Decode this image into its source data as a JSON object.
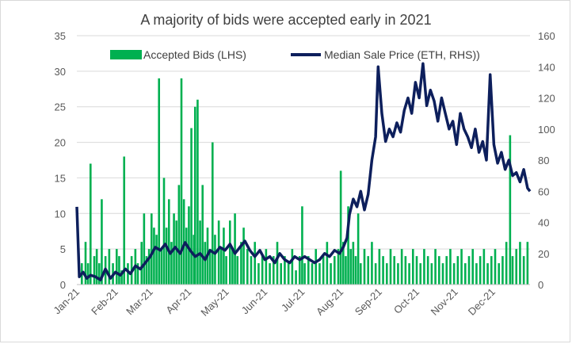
{
  "chart_data": {
    "type": "bar+line",
    "title": "A majority of bids were accepted early in 2021",
    "xlabel": "",
    "ylabel_left": "",
    "ylabel_right": "",
    "x_range": [
      "2021-01-01",
      "2021-12-31"
    ],
    "x_tick_labels": [
      "Jan-21",
      "Feb-21",
      "Mar-21",
      "Apr-21",
      "May-21",
      "Jun-21",
      "Jul-21",
      "Aug-21",
      "Sep-21",
      "Oct-21",
      "Nov-21",
      "Dec-21"
    ],
    "y_left": {
      "range": [
        0,
        35
      ],
      "ticks": [
        0,
        5,
        10,
        15,
        20,
        25,
        30,
        35
      ]
    },
    "y_right": {
      "range": [
        0,
        160
      ],
      "ticks": [
        0,
        20,
        40,
        60,
        80,
        100,
        120,
        140,
        160
      ]
    },
    "grid": "horizontal",
    "legend_position": "top",
    "series": [
      {
        "name": "Accepted Bids (LHS)",
        "type": "bar",
        "axis": "left",
        "color": "#00b050",
        "points": [
          [
            "2021-01-05",
            3
          ],
          [
            "2021-01-08",
            6
          ],
          [
            "2021-01-10",
            3
          ],
          [
            "2021-01-12",
            17
          ],
          [
            "2021-01-15",
            4
          ],
          [
            "2021-01-17",
            5
          ],
          [
            "2021-01-19",
            3
          ],
          [
            "2021-01-21",
            12
          ],
          [
            "2021-01-24",
            4
          ],
          [
            "2021-01-27",
            5
          ],
          [
            "2021-01-30",
            3
          ],
          [
            "2021-02-02",
            5
          ],
          [
            "2021-02-04",
            4
          ],
          [
            "2021-02-06",
            2
          ],
          [
            "2021-02-08",
            18
          ],
          [
            "2021-02-11",
            3
          ],
          [
            "2021-02-14",
            4
          ],
          [
            "2021-02-17",
            5
          ],
          [
            "2021-02-19",
            3
          ],
          [
            "2021-02-22",
            6
          ],
          [
            "2021-02-24",
            10
          ],
          [
            "2021-02-26",
            4
          ],
          [
            "2021-02-28",
            5
          ],
          [
            "2021-03-02",
            10
          ],
          [
            "2021-03-04",
            8
          ],
          [
            "2021-03-06",
            7
          ],
          [
            "2021-03-08",
            29
          ],
          [
            "2021-03-10",
            5
          ],
          [
            "2021-03-12",
            15
          ],
          [
            "2021-03-14",
            8
          ],
          [
            "2021-03-16",
            12
          ],
          [
            "2021-03-18",
            6
          ],
          [
            "2021-03-20",
            10
          ],
          [
            "2021-03-22",
            9
          ],
          [
            "2021-03-24",
            14
          ],
          [
            "2021-03-26",
            29
          ],
          [
            "2021-03-28",
            12
          ],
          [
            "2021-03-30",
            8
          ],
          [
            "2021-04-01",
            11
          ],
          [
            "2021-04-03",
            22
          ],
          [
            "2021-04-05",
            7
          ],
          [
            "2021-04-06",
            25
          ],
          [
            "2021-04-08",
            26
          ],
          [
            "2021-04-10",
            9
          ],
          [
            "2021-04-12",
            14
          ],
          [
            "2021-04-14",
            6
          ],
          [
            "2021-04-16",
            8
          ],
          [
            "2021-04-18",
            5
          ],
          [
            "2021-04-20",
            20
          ],
          [
            "2021-04-22",
            7
          ],
          [
            "2021-04-25",
            9
          ],
          [
            "2021-04-27",
            5
          ],
          [
            "2021-04-29",
            8
          ],
          [
            "2021-05-01",
            4
          ],
          [
            "2021-05-04",
            9
          ],
          [
            "2021-05-06",
            5
          ],
          [
            "2021-05-08",
            10
          ],
          [
            "2021-05-10",
            4
          ],
          [
            "2021-05-13",
            6
          ],
          [
            "2021-05-15",
            8
          ],
          [
            "2021-05-18",
            5
          ],
          [
            "2021-05-21",
            4
          ],
          [
            "2021-05-24",
            6
          ],
          [
            "2021-05-27",
            3
          ],
          [
            "2021-05-30",
            4
          ],
          [
            "2021-06-02",
            5
          ],
          [
            "2021-06-05",
            3
          ],
          [
            "2021-06-08",
            4
          ],
          [
            "2021-06-11",
            6
          ],
          [
            "2021-06-14",
            3
          ],
          [
            "2021-06-17",
            4
          ],
          [
            "2021-06-20",
            3
          ],
          [
            "2021-06-23",
            5
          ],
          [
            "2021-06-26",
            2
          ],
          [
            "2021-06-29",
            4
          ],
          [
            "2021-07-01",
            11
          ],
          [
            "2021-07-03",
            3
          ],
          [
            "2021-07-06",
            4
          ],
          [
            "2021-07-09",
            3
          ],
          [
            "2021-07-12",
            5
          ],
          [
            "2021-07-15",
            3
          ],
          [
            "2021-07-18",
            4
          ],
          [
            "2021-07-21",
            6
          ],
          [
            "2021-07-24",
            3
          ],
          [
            "2021-07-27",
            4
          ],
          [
            "2021-07-30",
            5
          ],
          [
            "2021-08-01",
            16
          ],
          [
            "2021-08-03",
            6
          ],
          [
            "2021-08-05",
            4
          ],
          [
            "2021-08-07",
            11
          ],
          [
            "2021-08-09",
            5
          ],
          [
            "2021-08-11",
            6
          ],
          [
            "2021-08-13",
            4
          ],
          [
            "2021-08-15",
            10
          ],
          [
            "2021-08-17",
            3
          ],
          [
            "2021-08-20",
            5
          ],
          [
            "2021-08-23",
            4
          ],
          [
            "2021-08-26",
            6
          ],
          [
            "2021-08-29",
            3
          ],
          [
            "2021-09-01",
            5
          ],
          [
            "2021-09-04",
            4
          ],
          [
            "2021-09-07",
            3
          ],
          [
            "2021-09-10",
            5
          ],
          [
            "2021-09-13",
            4
          ],
          [
            "2021-09-16",
            3
          ],
          [
            "2021-09-19",
            5
          ],
          [
            "2021-09-22",
            4
          ],
          [
            "2021-09-25",
            3
          ],
          [
            "2021-09-28",
            5
          ],
          [
            "2021-10-01",
            4
          ],
          [
            "2021-10-04",
            3
          ],
          [
            "2021-10-07",
            5
          ],
          [
            "2021-10-10",
            4
          ],
          [
            "2021-10-13",
            3
          ],
          [
            "2021-10-16",
            5
          ],
          [
            "2021-10-19",
            4
          ],
          [
            "2021-10-22",
            3
          ],
          [
            "2021-10-25",
            4
          ],
          [
            "2021-10-28",
            5
          ],
          [
            "2021-10-31",
            3
          ],
          [
            "2021-11-03",
            4
          ],
          [
            "2021-11-06",
            5
          ],
          [
            "2021-11-09",
            3
          ],
          [
            "2021-11-12",
            4
          ],
          [
            "2021-11-15",
            5
          ],
          [
            "2021-11-18",
            3
          ],
          [
            "2021-11-21",
            4
          ],
          [
            "2021-11-24",
            5
          ],
          [
            "2021-11-27",
            3
          ],
          [
            "2021-11-30",
            4
          ],
          [
            "2021-12-03",
            5
          ],
          [
            "2021-12-06",
            3
          ],
          [
            "2021-12-09",
            4
          ],
          [
            "2021-12-12",
            6
          ],
          [
            "2021-12-15",
            21
          ],
          [
            "2021-12-17",
            4
          ],
          [
            "2021-12-20",
            5
          ],
          [
            "2021-12-23",
            6
          ],
          [
            "2021-12-26",
            4
          ],
          [
            "2021-12-29",
            6
          ]
        ]
      },
      {
        "name": "Median Sale Price (ETH, RHS))",
        "type": "line",
        "axis": "right",
        "color": "#0d1f5c",
        "points": [
          [
            "2021-01-01",
            50
          ],
          [
            "2021-01-03",
            5
          ],
          [
            "2021-01-06",
            8
          ],
          [
            "2021-01-09",
            4
          ],
          [
            "2021-01-12",
            6
          ],
          [
            "2021-01-16",
            5
          ],
          [
            "2021-01-20",
            3
          ],
          [
            "2021-01-24",
            10
          ],
          [
            "2021-01-28",
            4
          ],
          [
            "2021-02-01",
            8
          ],
          [
            "2021-02-05",
            6
          ],
          [
            "2021-02-09",
            10
          ],
          [
            "2021-02-13",
            7
          ],
          [
            "2021-02-17",
            12
          ],
          [
            "2021-02-21",
            10
          ],
          [
            "2021-02-25",
            14
          ],
          [
            "2021-03-01",
            18
          ],
          [
            "2021-03-05",
            24
          ],
          [
            "2021-03-09",
            22
          ],
          [
            "2021-03-13",
            26
          ],
          [
            "2021-03-17",
            20
          ],
          [
            "2021-03-21",
            24
          ],
          [
            "2021-03-25",
            20
          ],
          [
            "2021-03-29",
            27
          ],
          [
            "2021-04-02",
            22
          ],
          [
            "2021-04-06",
            18
          ],
          [
            "2021-04-10",
            20
          ],
          [
            "2021-04-14",
            16
          ],
          [
            "2021-04-18",
            22
          ],
          [
            "2021-04-22",
            20
          ],
          [
            "2021-04-26",
            24
          ],
          [
            "2021-04-30",
            22
          ],
          [
            "2021-05-04",
            26
          ],
          [
            "2021-05-08",
            20
          ],
          [
            "2021-05-12",
            24
          ],
          [
            "2021-05-16",
            28
          ],
          [
            "2021-05-20",
            22
          ],
          [
            "2021-05-24",
            18
          ],
          [
            "2021-05-28",
            22
          ],
          [
            "2021-06-01",
            16
          ],
          [
            "2021-06-05",
            18
          ],
          [
            "2021-06-09",
            14
          ],
          [
            "2021-06-13",
            20
          ],
          [
            "2021-06-17",
            16
          ],
          [
            "2021-06-21",
            14
          ],
          [
            "2021-06-25",
            18
          ],
          [
            "2021-06-29",
            16
          ],
          [
            "2021-07-03",
            18
          ],
          [
            "2021-07-07",
            16
          ],
          [
            "2021-07-11",
            14
          ],
          [
            "2021-07-15",
            16
          ],
          [
            "2021-07-19",
            20
          ],
          [
            "2021-07-23",
            18
          ],
          [
            "2021-07-27",
            22
          ],
          [
            "2021-07-31",
            20
          ],
          [
            "2021-08-03",
            24
          ],
          [
            "2021-08-06",
            30
          ],
          [
            "2021-08-08",
            45
          ],
          [
            "2021-08-11",
            55
          ],
          [
            "2021-08-14",
            50
          ],
          [
            "2021-08-17",
            60
          ],
          [
            "2021-08-20",
            48
          ],
          [
            "2021-08-23",
            58
          ],
          [
            "2021-08-26",
            80
          ],
          [
            "2021-08-29",
            95
          ],
          [
            "2021-08-31",
            140
          ],
          [
            "2021-09-03",
            110
          ],
          [
            "2021-09-06",
            92
          ],
          [
            "2021-09-09",
            100
          ],
          [
            "2021-09-12",
            95
          ],
          [
            "2021-09-15",
            104
          ],
          [
            "2021-09-18",
            98
          ],
          [
            "2021-09-21",
            112
          ],
          [
            "2021-09-24",
            120
          ],
          [
            "2021-09-27",
            110
          ],
          [
            "2021-09-30",
            130
          ],
          [
            "2021-10-03",
            120
          ],
          [
            "2021-10-06",
            142
          ],
          [
            "2021-10-09",
            115
          ],
          [
            "2021-10-12",
            125
          ],
          [
            "2021-10-15",
            118
          ],
          [
            "2021-10-18",
            105
          ],
          [
            "2021-10-21",
            120
          ],
          [
            "2021-10-24",
            110
          ],
          [
            "2021-10-27",
            100
          ],
          [
            "2021-10-30",
            105
          ],
          [
            "2021-11-02",
            90
          ],
          [
            "2021-11-05",
            110
          ],
          [
            "2021-11-08",
            100
          ],
          [
            "2021-11-11",
            95
          ],
          [
            "2021-11-14",
            88
          ],
          [
            "2021-11-17",
            100
          ],
          [
            "2021-11-20",
            85
          ],
          [
            "2021-11-23",
            92
          ],
          [
            "2021-11-26",
            80
          ],
          [
            "2021-11-29",
            135
          ],
          [
            "2021-12-02",
            90
          ],
          [
            "2021-12-05",
            78
          ],
          [
            "2021-12-08",
            85
          ],
          [
            "2021-12-11",
            74
          ],
          [
            "2021-12-14",
            80
          ],
          [
            "2021-12-17",
            70
          ],
          [
            "2021-12-20",
            72
          ],
          [
            "2021-12-23",
            66
          ],
          [
            "2021-12-26",
            74
          ],
          [
            "2021-12-29",
            62
          ],
          [
            "2021-12-31",
            60
          ]
        ]
      }
    ]
  }
}
